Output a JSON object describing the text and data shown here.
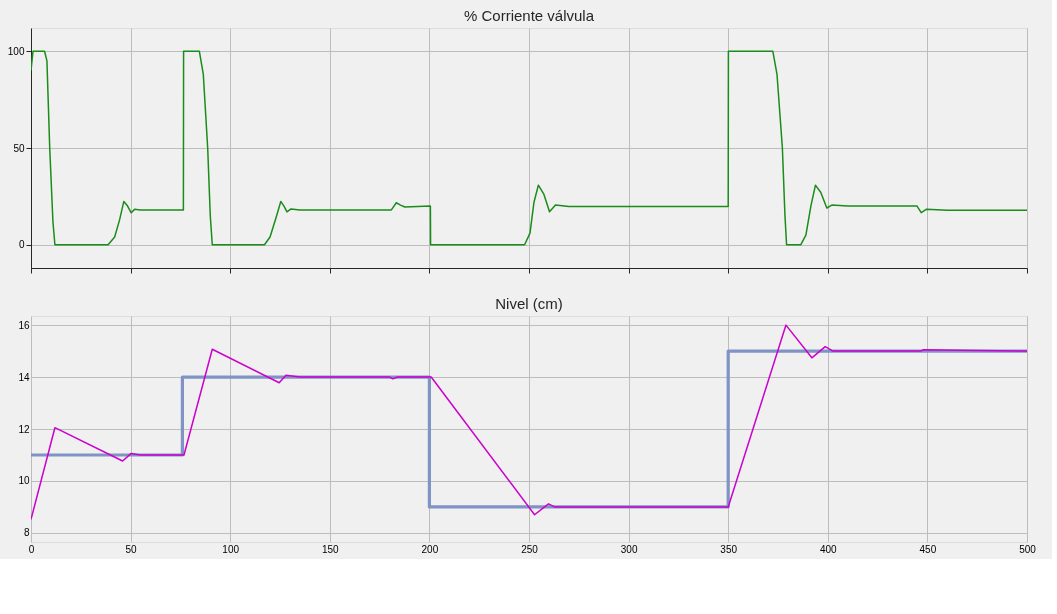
{
  "chart_data": [
    {
      "type": "line",
      "title": "% Corriente válvula",
      "xlim": [
        0,
        500
      ],
      "xticks": [
        0,
        50,
        100,
        150,
        200,
        250,
        300,
        350,
        400,
        450,
        500
      ],
      "ylim": [
        -12,
        112
      ],
      "yticks": [
        0,
        50,
        100
      ],
      "grid": true,
      "tick_labels": "y",
      "series": [
        {
          "color": "#1a8c1a",
          "x": [
            0,
            1,
            6.8,
            8,
            9.4,
            11,
            12,
            38.7,
            42,
            44.5,
            46.6,
            48.5,
            50.3,
            52,
            55,
            76.5,
            76.6,
            84.5,
            86.5,
            88.7,
            90,
            91,
            117.2,
            120,
            123,
            125.4,
            127,
            128.5,
            130.5,
            135,
            180.9,
            183.4,
            185.5,
            187.7,
            200.5,
            200.6,
            247.8,
            250.5,
            252.5,
            254.7,
            257.5,
            260.3,
            263.3,
            270,
            350,
            350.1,
            372.4,
            374.5,
            377.2,
            378.5,
            379.3,
            386.4,
            389,
            391.5,
            393.8,
            396.5,
            399.5,
            402,
            410,
            444.8,
            446.9,
            449.6,
            460,
            500
          ],
          "values": [
            90,
            100,
            100,
            95,
            50,
            12,
            0,
            0,
            4,
            13,
            22.4,
            20,
            16.5,
            18.3,
            18,
            18,
            100,
            100,
            88,
            50,
            15,
            0,
            0,
            4,
            14,
            22.4,
            20,
            17,
            18.5,
            18,
            18,
            21.7,
            20.5,
            19.5,
            20,
            0,
            0,
            6,
            22,
            30.8,
            26,
            17.1,
            20.5,
            19.8,
            19.8,
            100,
            100,
            88,
            50,
            15,
            0,
            0,
            5,
            20,
            30.8,
            27,
            19,
            20.5,
            20,
            20,
            16.6,
            18.4,
            17.8,
            17.8
          ]
        }
      ]
    },
    {
      "type": "line",
      "title": "Nivel (cm)",
      "xlim": [
        0,
        500
      ],
      "xticks": [
        0,
        50,
        100,
        150,
        200,
        250,
        300,
        350,
        400,
        450,
        500
      ],
      "ylim": [
        7.65,
        16.35
      ],
      "yticks": [
        8,
        10,
        12,
        14,
        16
      ],
      "grid": true,
      "series": [
        {
          "type": "step",
          "color": "#7f93c4",
          "x": [
            0,
            76,
            200,
            350,
            500
          ],
          "values": [
            11,
            14,
            9,
            15,
            15
          ]
        },
        {
          "color": "#cc00cc",
          "x": [
            0,
            12,
            46,
            50.3,
            55,
            76.8,
            91,
            124.6,
            128,
            135,
            180,
            181.7,
            184,
            200.9,
            252.8,
            259.8,
            262.8,
            300,
            350,
            379,
            392,
            398.7,
            402.6,
            446.6,
            448,
            500
          ],
          "values": [
            8.52,
            12.05,
            10.77,
            11.06,
            11,
            11,
            15.07,
            13.78,
            14.07,
            14,
            14,
            13.93,
            14,
            14,
            8.7,
            9.12,
            9,
            9,
            9,
            16,
            14.74,
            15.17,
            15,
            15,
            15.05,
            15
          ]
        }
      ]
    }
  ]
}
